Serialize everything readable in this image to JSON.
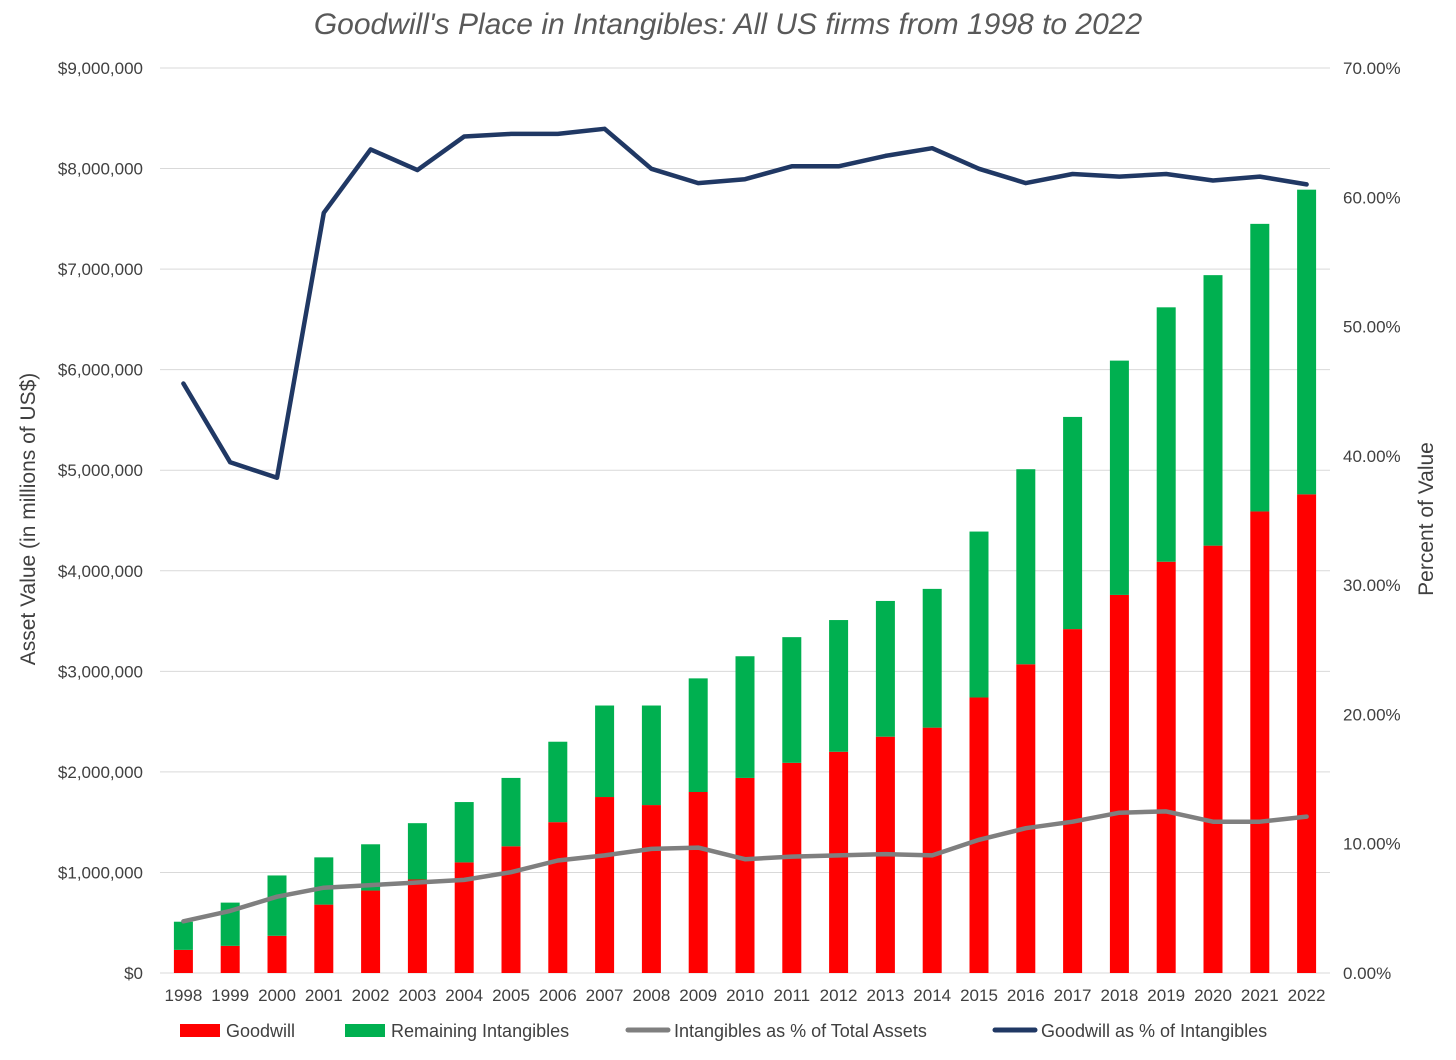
{
  "chart_data": {
    "type": "bar",
    "title": "Goodwill's Place in Intangibles: All US firms from 1998 to 2022",
    "ylabel": "Asset Value (in millions of US$)",
    "y2label": "Percent of Value",
    "ylim": [
      0,
      9000000
    ],
    "y2lim": [
      0,
      0.7
    ],
    "y_ticks": [
      "$0",
      "$1,000,000",
      "$2,000,000",
      "$3,000,000",
      "$4,000,000",
      "$5,000,000",
      "$6,000,000",
      "$7,000,000",
      "$8,000,000",
      "$9,000,000"
    ],
    "y2_ticks": [
      "0.00%",
      "10.00%",
      "20.00%",
      "30.00%",
      "40.00%",
      "50.00%",
      "60.00%",
      "70.00%"
    ],
    "grid": true,
    "legend_position": "bottom",
    "categories": [
      "1998",
      "1999",
      "2000",
      "2001",
      "2002",
      "2003",
      "2004",
      "2005",
      "2006",
      "2007",
      "2008",
      "2009",
      "2010",
      "2011",
      "2012",
      "2013",
      "2014",
      "2015",
      "2016",
      "2017",
      "2018",
      "2019",
      "2020",
      "2021",
      "2022"
    ],
    "series": [
      {
        "name": "Goodwill",
        "kind": "bar",
        "stack": "assets",
        "axis": "left",
        "color": "#ff0000",
        "values": [
          230000,
          270000,
          370000,
          680000,
          820000,
          930000,
          1100000,
          1260000,
          1500000,
          1750000,
          1670000,
          1800000,
          1940000,
          2090000,
          2200000,
          2350000,
          2440000,
          2740000,
          3070000,
          3420000,
          3760000,
          4090000,
          4250000,
          4590000,
          4760000
        ]
      },
      {
        "name": "Remaining Intangibles",
        "kind": "bar",
        "stack": "assets",
        "axis": "left",
        "color": "#00b050",
        "values": [
          280000,
          430000,
          600000,
          470000,
          460000,
          560000,
          600000,
          680000,
          800000,
          910000,
          990000,
          1130000,
          1210000,
          1250000,
          1310000,
          1350000,
          1380000,
          1650000,
          1940000,
          2110000,
          2330000,
          2530000,
          2690000,
          2860000,
          3030000
        ]
      },
      {
        "name": "Intangibles as % of Total Assets",
        "kind": "line",
        "axis": "right",
        "color": "#7f7f7f",
        "values": [
          0.04,
          0.048,
          0.059,
          0.066,
          0.068,
          0.07,
          0.072,
          0.078,
          0.087,
          0.091,
          0.096,
          0.097,
          0.088,
          0.09,
          0.091,
          0.092,
          0.091,
          0.103,
          0.112,
          0.117,
          0.124,
          0.125,
          0.117,
          0.117,
          0.121
        ]
      },
      {
        "name": "Goodwill as % of Intangibles",
        "kind": "line",
        "axis": "right",
        "color": "#203864",
        "values": [
          0.456,
          0.395,
          0.383,
          0.588,
          0.637,
          0.621,
          0.647,
          0.649,
          0.649,
          0.653,
          0.622,
          0.611,
          0.614,
          0.624,
          0.624,
          0.632,
          0.638,
          0.622,
          0.611,
          0.618,
          0.616,
          0.618,
          0.613,
          0.616,
          0.61
        ]
      }
    ]
  }
}
